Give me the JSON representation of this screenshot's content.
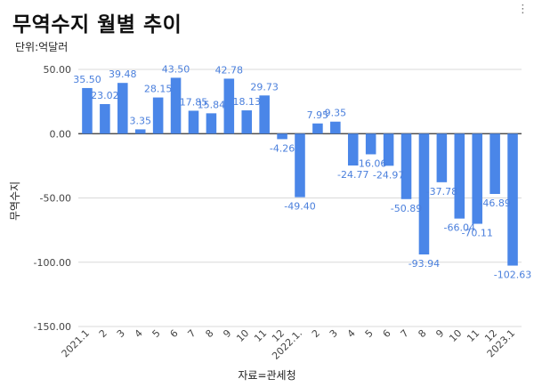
{
  "header": {
    "title": "무역수지 월별 추이",
    "subtitle": "단위:억달러",
    "menu_icon": "more-vertical-icon"
  },
  "footer": {
    "source": "자료=관세청"
  },
  "chart_data": {
    "type": "bar",
    "title": "무역수지 월별 추이",
    "subtitle": "단위:억달러",
    "xlabel": "자료=관세청",
    "ylabel": "무역수지",
    "ylim": [
      -150,
      50
    ],
    "yticks": [
      50,
      0,
      -50,
      -100,
      -150
    ],
    "ytick_labels": [
      "50.00",
      "0.00",
      "-50.00",
      "-100.00",
      "-150.00"
    ],
    "grid": true,
    "bar_color": "#4a86e8",
    "label_color": "#4a7fdc",
    "categories": [
      "2021.1",
      "2",
      "3",
      "4",
      "5",
      "6",
      "7",
      "8",
      "9",
      "10",
      "11",
      "12",
      "2022.1.",
      "2",
      "3",
      "4",
      "5",
      "6",
      "7",
      "8",
      "9",
      "10",
      "11",
      "12",
      "2023.1"
    ],
    "values": [
      35.5,
      23.02,
      39.48,
      3.35,
      28.15,
      43.5,
      17.85,
      15.84,
      42.78,
      18.13,
      29.73,
      -4.26,
      -49.4,
      7.95,
      9.35,
      -24.77,
      -16.06,
      -24.97,
      -50.89,
      -93.94,
      -37.78,
      -66.04,
      -70.11,
      -46.89,
      -102.63
    ],
    "labels": [
      "35.50",
      "23.02",
      "39.48",
      "3.35",
      "28.15",
      "43.50",
      "17.85",
      "15.84",
      "42.78",
      "18.13",
      "29.73",
      "-4.26",
      "-49.40",
      "7.95",
      "9.35",
      "-24.77",
      "-16.06",
      "-24.97",
      "-50.89",
      "-93.94",
      "-37.78",
      "-66.04",
      "-70.11",
      "-46.89",
      "-102.63"
    ]
  }
}
